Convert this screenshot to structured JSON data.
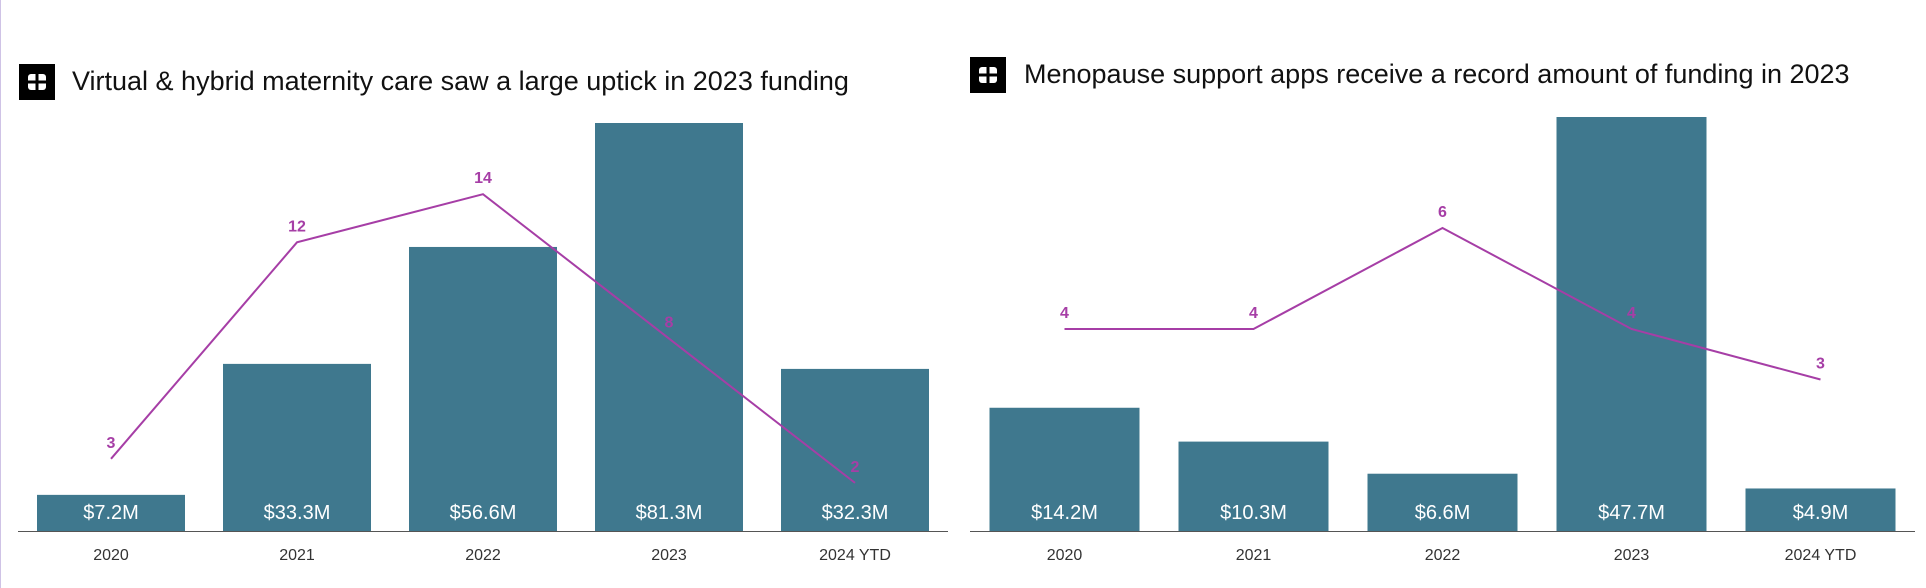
{
  "colors": {
    "bar": "#3f788e",
    "line": "#a63ea6",
    "axis": "#555555",
    "logo": "#000000"
  },
  "charts": [
    {
      "title": "Virtual & hybrid maternity care saw a large uptick in 2023 funding",
      "logo_icon": "grid-logo-icon"
    },
    {
      "title": "Menopause support apps receive a record amount of funding in 2023",
      "logo_icon": "grid-logo-icon"
    }
  ],
  "chart_data": [
    {
      "type": "bar",
      "title": "Virtual & hybrid maternity care saw a large uptick in 2023 funding",
      "categories": [
        "2020",
        "2021",
        "2022",
        "2023",
        "2024 YTD"
      ],
      "series": [
        {
          "type": "bar",
          "values": [
            7.2,
            33.3,
            56.6,
            81.3,
            32.3
          ],
          "data_labels": [
            "$7.2M",
            "$33.3M",
            "$56.6M",
            "$81.3M",
            "$32.3M"
          ]
        },
        {
          "type": "line",
          "values": [
            3,
            12,
            14,
            8,
            2
          ],
          "data_labels": [
            "3",
            "12",
            "14",
            "8",
            "2"
          ]
        }
      ],
      "ylim_bar": [
        0,
        81.3
      ],
      "ylim_line": [
        0,
        17.5
      ],
      "grid": false,
      "legend": "none"
    },
    {
      "type": "bar",
      "title": "Menopause support apps receive a record amount of funding in 2023",
      "categories": [
        "2020",
        "2021",
        "2022",
        "2023",
        "2024 YTD"
      ],
      "series": [
        {
          "type": "bar",
          "values": [
            14.2,
            10.3,
            6.6,
            47.7,
            4.9
          ],
          "data_labels": [
            "$14.2M",
            "$10.3M",
            "$6.6M",
            "$47.7M",
            "$4.9M"
          ]
        },
        {
          "type": "line",
          "values": [
            4,
            4,
            6,
            4,
            3
          ],
          "data_labels": [
            "4",
            "4",
            "6",
            "4",
            "3"
          ]
        }
      ],
      "ylim_bar": [
        0,
        47.7
      ],
      "ylim_line": [
        0,
        8
      ],
      "grid": false,
      "legend": "none"
    }
  ]
}
